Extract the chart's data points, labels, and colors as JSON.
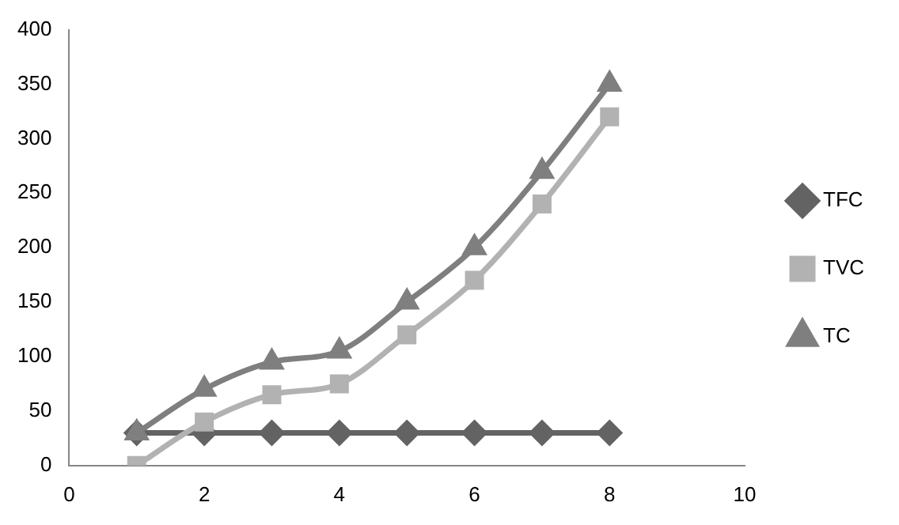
{
  "chart_data": {
    "type": "line",
    "x": [
      1,
      2,
      3,
      4,
      5,
      6,
      7,
      8
    ],
    "series": [
      {
        "name": "TFC",
        "color": "#636363",
        "marker": "diamond",
        "values": [
          30,
          30,
          30,
          30,
          30,
          30,
          30,
          30
        ]
      },
      {
        "name": "TVC",
        "color": "#b2b2b2",
        "marker": "square",
        "values": [
          0,
          40,
          65,
          75,
          120,
          170,
          240,
          320
        ]
      },
      {
        "name": "TC",
        "color": "#7f7f7f",
        "marker": "triangle",
        "values": [
          30,
          70,
          95,
          105,
          150,
          200,
          270,
          350
        ]
      }
    ],
    "xlim": [
      0,
      10
    ],
    "xticks": [
      0,
      2,
      4,
      6,
      8,
      10
    ],
    "ylim": [
      0,
      400
    ],
    "yticks": [
      0,
      50,
      100,
      150,
      200,
      250,
      300,
      350,
      400
    ],
    "grid": false,
    "legend": "right",
    "line_style": "solid"
  }
}
